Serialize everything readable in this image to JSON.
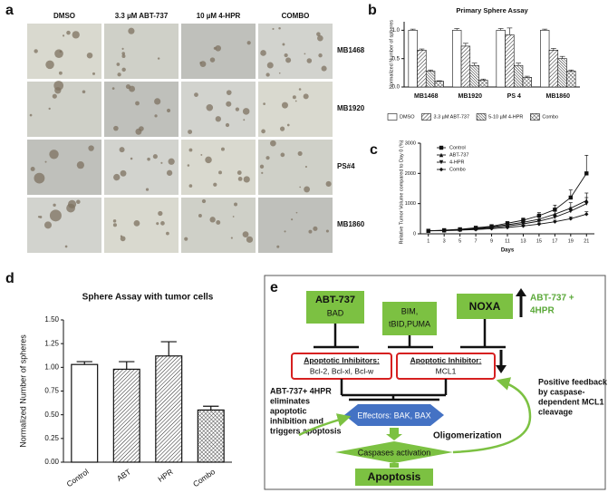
{
  "letters": [
    "a",
    "b",
    "c",
    "d",
    "e"
  ],
  "panel_a": {
    "columns": [
      "DMSO",
      "3.3 µM ABT-737",
      "10 µM 4-HPR",
      "COMBO"
    ],
    "rows": [
      "MB1468",
      "MB1920",
      "PS#4",
      "MB1860"
    ]
  },
  "chart_data": [
    {
      "type": "bar",
      "title": "Primary Sphere Assay",
      "y_label": "Normalized Number of spheres",
      "categories": [
        "MB1468",
        "MB1920",
        "PS 4",
        "MB1860"
      ],
      "series": [
        {
          "name": "DMSO",
          "color": "#ffffff",
          "pattern": "none",
          "values": [
            1.0,
            1.0,
            1.0,
            1.0
          ],
          "errors": [
            0.02,
            0.03,
            0.03,
            0.02
          ]
        },
        {
          "name": "3.3 µM ABT-737",
          "color": "#ffffff",
          "pattern": "hatch",
          "values": [
            0.65,
            0.72,
            0.92,
            0.65
          ],
          "errors": [
            0.02,
            0.05,
            0.12,
            0.03
          ]
        },
        {
          "name": "5-10 µM 4-HPR",
          "color": "#ffffff",
          "pattern": "dense",
          "values": [
            0.28,
            0.38,
            0.38,
            0.5
          ],
          "errors": [
            0.02,
            0.04,
            0.04,
            0.04
          ]
        },
        {
          "name": "Combo",
          "color": "#ffffff",
          "pattern": "cross",
          "values": [
            0.1,
            0.12,
            0.17,
            0.28
          ],
          "errors": [
            0.01,
            0.02,
            0.02,
            0.02
          ]
        }
      ],
      "ylim": [
        0,
        1.15
      ],
      "yticks": [
        {
          "value": 0,
          "label": "0.0"
        },
        {
          "value": 0.5,
          "label": "0.5"
        },
        {
          "value": 1,
          "label": "1.0"
        }
      ],
      "legend": "bottom"
    },
    {
      "type": "line",
      "x_label": "Days",
      "y_label": "Relative Tumor Volume compared to Day 0 (%)",
      "x": [
        1,
        3,
        5,
        7,
        9,
        11,
        13,
        15,
        17,
        19,
        21
      ],
      "series": [
        {
          "name": "Control",
          "color": "#111111",
          "marker": "square",
          "values": [
            100,
            120,
            150,
            200,
            250,
            350,
            450,
            600,
            800,
            1200,
            2000
          ],
          "errors": [
            10,
            15,
            20,
            30,
            40,
            50,
            70,
            100,
            150,
            250,
            600
          ]
        },
        {
          "name": "ABT-737",
          "color": "#111111",
          "marker": "triangle",
          "values": [
            100,
            110,
            140,
            180,
            230,
            300,
            380,
            480,
            650,
            850,
            1100
          ],
          "errors": [
            10,
            15,
            20,
            25,
            30,
            40,
            60,
            80,
            120,
            180,
            250
          ]
        },
        {
          "name": "4-HPR",
          "color": "#111111",
          "marker": "triangle-down",
          "values": [
            100,
            110,
            130,
            160,
            200,
            260,
            330,
            420,
            550,
            750,
            1000
          ],
          "errors": [
            10,
            10,
            15,
            20,
            30,
            40,
            50,
            60,
            80,
            120,
            200
          ]
        },
        {
          "name": "Combo",
          "color": "#111111",
          "marker": "diamond",
          "values": [
            100,
            105,
            120,
            140,
            170,
            210,
            260,
            320,
            400,
            500,
            650
          ],
          "errors": [
            5,
            10,
            10,
            15,
            20,
            25,
            30,
            40,
            50,
            60,
            80
          ]
        }
      ],
      "xlim": [
        0,
        22
      ],
      "xticks": [
        1,
        3,
        5,
        7,
        9,
        11,
        13,
        15,
        17,
        19,
        21
      ],
      "ylim": [
        0,
        3000
      ],
      "yticks": [
        0,
        1000,
        2000,
        3000
      ],
      "legend": "top-left"
    },
    {
      "type": "bar",
      "title": "Sphere Assay with tumor cells",
      "y_label": "Normalized Number of spheres",
      "categories": [
        "Control",
        "ABT",
        "HPR",
        "Combo"
      ],
      "values": [
        1.03,
        0.98,
        1.12,
        0.55
      ],
      "errors": [
        0.03,
        0.08,
        0.15,
        0.04
      ],
      "patterns": [
        "none",
        "hatch",
        "hatch",
        "cross"
      ],
      "ylim": [
        0,
        1.5
      ],
      "yticks": [
        {
          "value": 0,
          "label": "0.00"
        },
        {
          "value": 0.25,
          "label": "0.25"
        },
        {
          "value": 0.5,
          "label": "0.50"
        },
        {
          "value": 0.75,
          "label": "0.75"
        },
        {
          "value": 1,
          "label": "1.00"
        },
        {
          "value": 1.25,
          "label": "1.25"
        },
        {
          "value": 1.5,
          "label": "1.50"
        }
      ]
    }
  ],
  "diagram": {
    "abt": [
      "ABT-737",
      "BAD"
    ],
    "bim": [
      "BIM,",
      "tBID,PUMA"
    ],
    "noxa": "NOXA",
    "up_note": [
      "ABT-737 +",
      "4HPR"
    ],
    "inhibitors1": [
      "Apoptotic Inhibitors:",
      "Bcl-2, Bcl-xl, Bcl-w"
    ],
    "inhibitor2": [
      "Apoptotic Inhibitor:",
      "MCL1"
    ],
    "left_note": [
      "ABT-737+ 4HPR",
      "eliminates",
      "apoptotic",
      "inhibition and",
      "triggers apoptosis"
    ],
    "right_note": [
      "Positive feedback",
      "by caspase-",
      "dependent MCL1",
      "cleavage"
    ],
    "effectors": "Effectors: BAK, BAX",
    "oligo": "Oligomerization",
    "caspases": "Caspases activation",
    "apoptosis": "Apoptosis"
  }
}
